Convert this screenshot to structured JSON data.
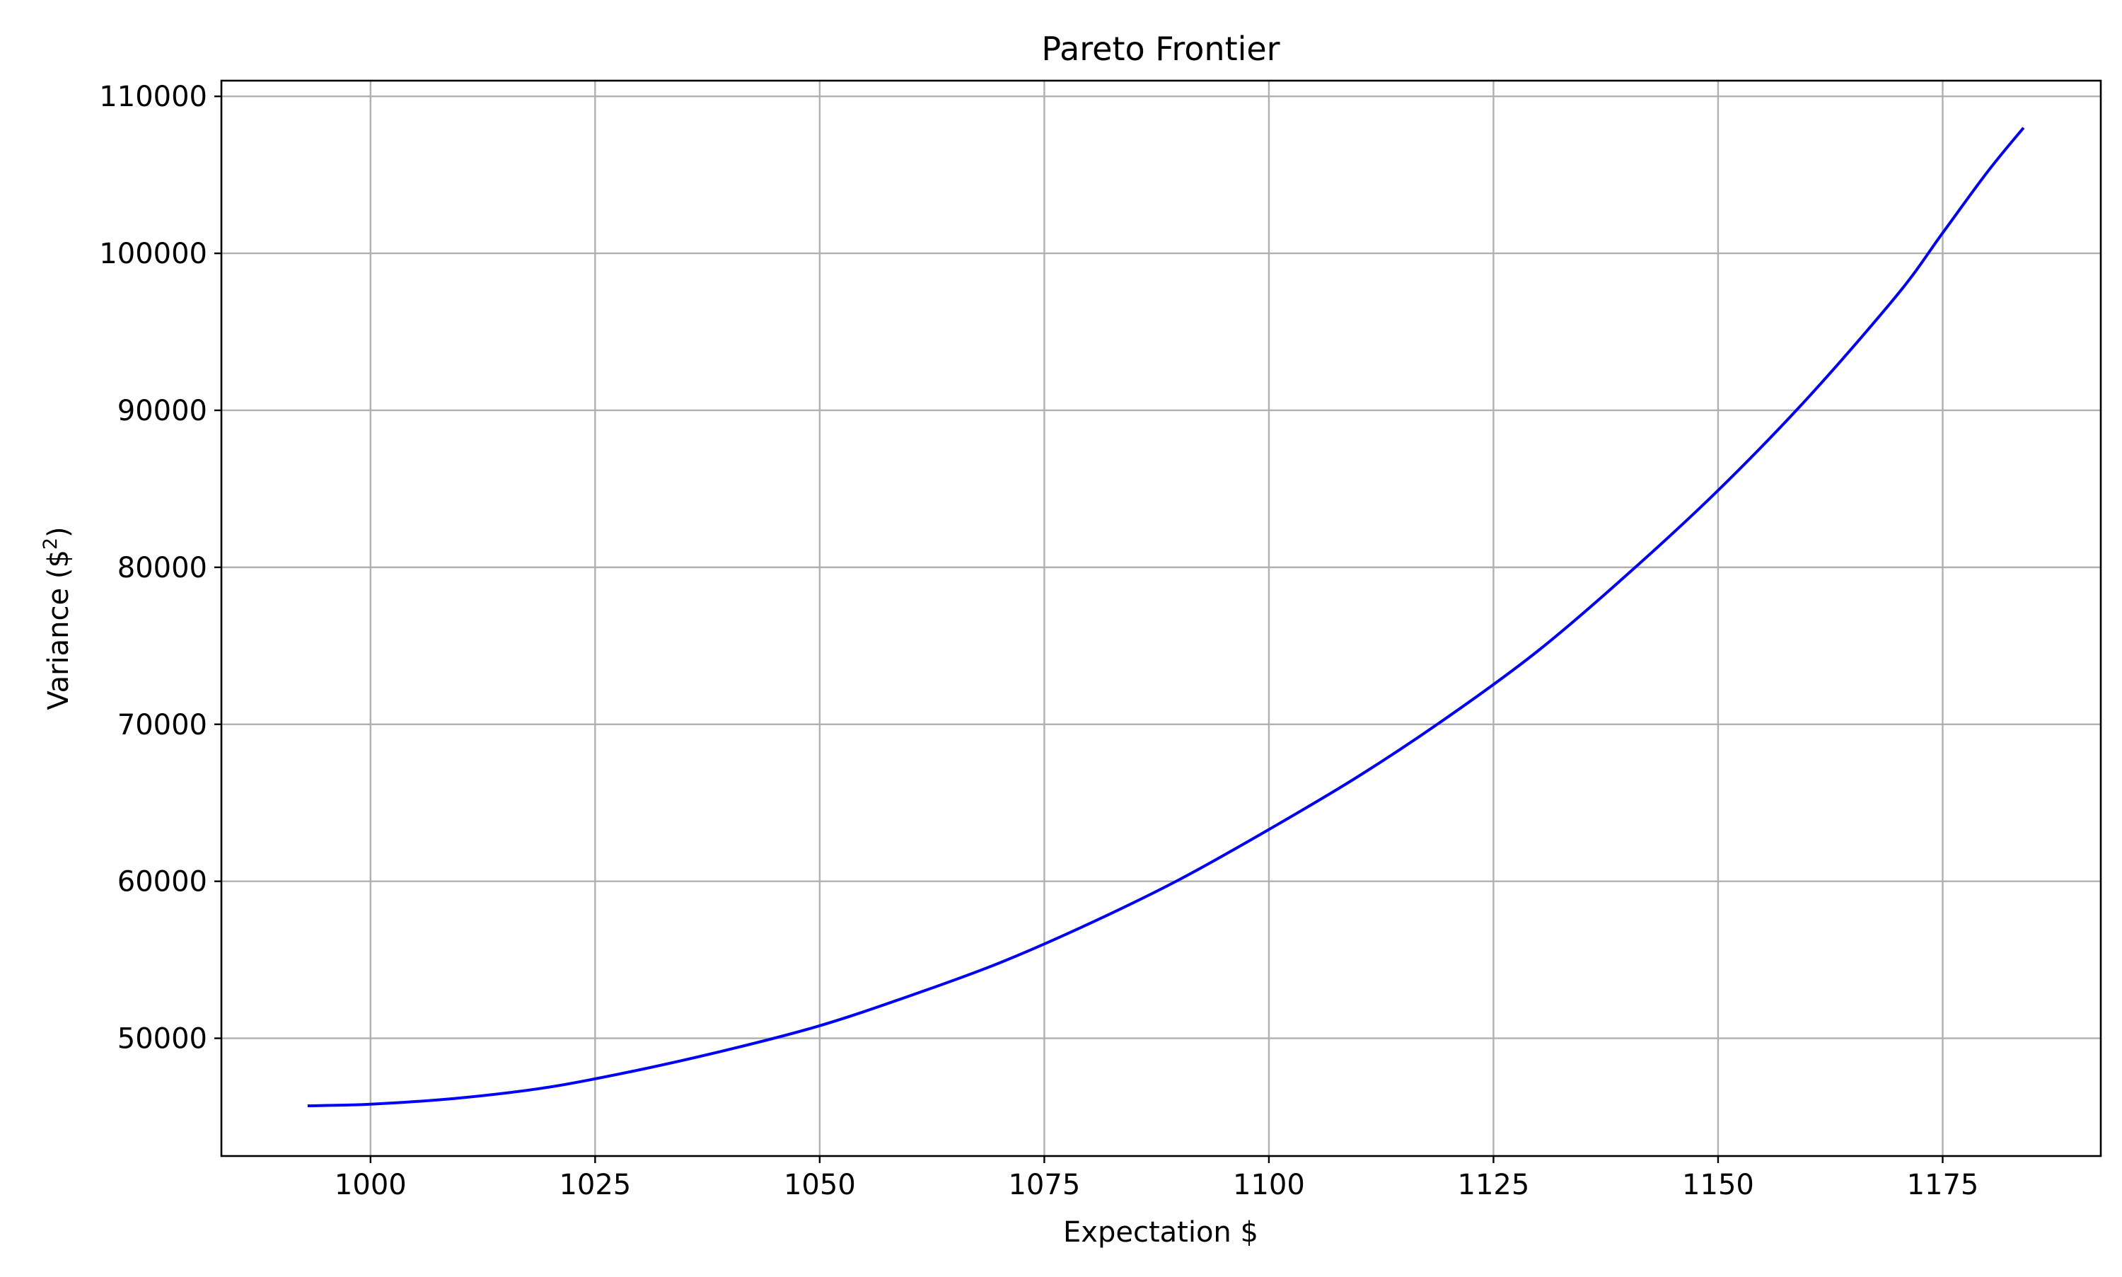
{
  "chart_data": {
    "type": "line",
    "title": "Pareto Frontier",
    "xlabel": "Expectation $",
    "ylabel_main": "Variance ($",
    "ylabel_sup": "2",
    "ylabel_close": ")",
    "xlim": [
      983.4,
      1192.6
    ],
    "ylim": [
      42500,
      111000
    ],
    "xticks": [
      1000,
      1025,
      1050,
      1075,
      1100,
      1125,
      1150,
      1175
    ],
    "yticks": [
      50000,
      60000,
      70000,
      80000,
      90000,
      100000,
      110000
    ],
    "grid": true,
    "series": [
      {
        "color": "#0000ff",
        "x": [
          993,
          1000,
          1010,
          1020,
          1030,
          1040,
          1050,
          1060,
          1070,
          1080,
          1090,
          1100,
          1110,
          1120,
          1130,
          1140,
          1150,
          1160,
          1170,
          1175,
          1180,
          1184
        ],
        "y": [
          45700,
          45800,
          46200,
          46900,
          48000,
          49300,
          50800,
          52700,
          54800,
          57300,
          60100,
          63300,
          66700,
          70500,
          74700,
          79600,
          84900,
          90800,
          97400,
          101300,
          105200,
          108000
        ]
      }
    ]
  }
}
